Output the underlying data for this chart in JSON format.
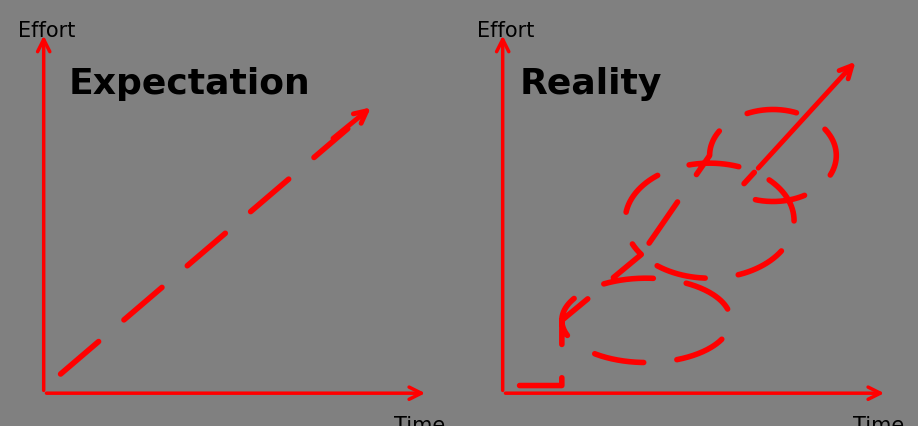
{
  "background_color": "#808080",
  "line_color": "#FF0000",
  "text_color": "#000000",
  "axis_color": "#FF0000",
  "title1": "Expectation",
  "title2": "Reality",
  "xlabel": "Time",
  "ylabel": "Effort",
  "title_fontsize": 26,
  "label_fontsize": 15
}
